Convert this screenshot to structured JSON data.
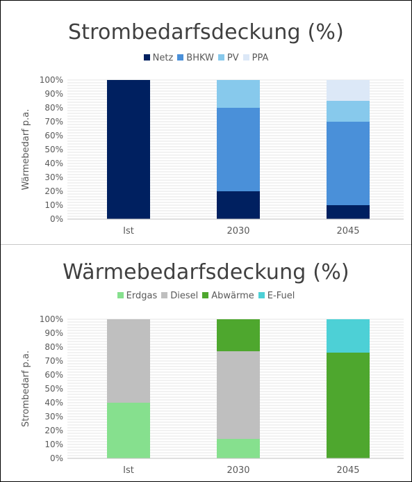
{
  "chart_data": [
    {
      "type": "bar",
      "stacked": true,
      "title": "Strombedarfsdeckung (%)",
      "ylabel": "Wärmebedarf p.a.",
      "xlabel": "",
      "categories": [
        "Ist",
        "2030",
        "2045"
      ],
      "ylim": [
        0,
        100
      ],
      "yticks": [
        "0%",
        "10%",
        "20%",
        "30%",
        "40%",
        "50%",
        "60%",
        "70%",
        "80%",
        "90%",
        "100%"
      ],
      "legend_position": "top",
      "grid": true,
      "series": [
        {
          "name": "Netz",
          "color": "#002060",
          "values": [
            100,
            20,
            10
          ]
        },
        {
          "name": "BHKW",
          "color": "#4a90d9",
          "values": [
            0,
            60,
            60
          ]
        },
        {
          "name": "PV",
          "color": "#87c9ec",
          "values": [
            0,
            20,
            15
          ]
        },
        {
          "name": "PPA",
          "color": "#dce8f7",
          "values": [
            0,
            0,
            15
          ]
        }
      ]
    },
    {
      "type": "bar",
      "stacked": true,
      "title": "Wärmebedarfsdeckung (%)",
      "ylabel": "Strombedarf p.a.",
      "xlabel": "",
      "categories": [
        "Ist",
        "2030",
        "2045"
      ],
      "ylim": [
        0,
        100
      ],
      "yticks": [
        "0%",
        "10%",
        "20%",
        "30%",
        "40%",
        "50%",
        "60%",
        "70%",
        "80%",
        "90%",
        "100%"
      ],
      "legend_position": "top",
      "grid": true,
      "series": [
        {
          "name": "Erdgas",
          "color": "#86e08e",
          "values": [
            40,
            14,
            0
          ]
        },
        {
          "name": "Diesel",
          "color": "#bfbfbf",
          "values": [
            60,
            63,
            0
          ]
        },
        {
          "name": "Abwärme",
          "color": "#4ea72e",
          "values": [
            0,
            23,
            76
          ]
        },
        {
          "name": "E-Fuel",
          "color": "#4dd0d6",
          "values": [
            0,
            0,
            24
          ]
        }
      ]
    }
  ]
}
